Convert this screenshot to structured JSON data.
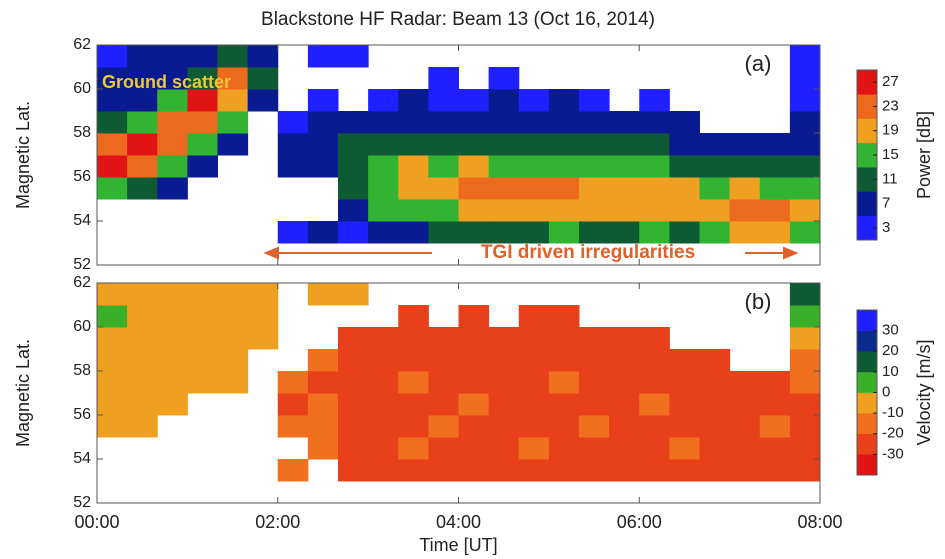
{
  "chart_data": [
    {
      "type": "heatmap",
      "title": "Blackstone HF Radar: Beam 13 (Oct 16, 2014)",
      "panel_label": "(a)",
      "ylabel": "Magnetic Lat.",
      "colorbar_label": "Power [dB]",
      "annotations": [
        "Ground scatter",
        "TGI driven irregularities"
      ],
      "xlim": [
        0,
        8
      ],
      "xticks": [
        {
          "value": 0,
          "label": "00:00"
        },
        {
          "value": 2,
          "label": "02:00"
        },
        {
          "value": 4,
          "label": "04:00"
        },
        {
          "value": 6,
          "label": "06:00"
        },
        {
          "value": 8,
          "label": "08:00"
        }
      ],
      "ylim": [
        52,
        62
      ],
      "yticks": [
        52,
        54,
        56,
        58,
        60,
        62
      ],
      "zlim": [
        1,
        29
      ],
      "zticks": [
        3,
        7,
        11,
        15,
        19,
        23,
        27
      ],
      "colors": [
        "#1f1fff",
        "#0a1a90",
        "#0d5a35",
        "#32b432",
        "#f0a020",
        "#ec6a1e",
        "#e01414"
      ],
      "x_bins": [
        0,
        0.3333,
        0.6667,
        1,
        1.3333,
        1.6667,
        2,
        2.3333,
        2.6667,
        3,
        3.3333,
        3.6667,
        4,
        4.3333,
        4.6667,
        5,
        5.3333,
        5.6667,
        6,
        6.3333,
        6.6667,
        7,
        7.3333,
        7.6667,
        8
      ],
      "y_bins": [
        52,
        53,
        54,
        55,
        56,
        57,
        58,
        59,
        60,
        61,
        62
      ],
      "z": [
        [
          null,
          null,
          null,
          null,
          null,
          null,
          null,
          null,
          null,
          null,
          null,
          null,
          null,
          null,
          null,
          null,
          null,
          null,
          null,
          null,
          null,
          null,
          null,
          null
        ],
        [
          null,
          null,
          null,
          null,
          null,
          null,
          3,
          5,
          3,
          7,
          7,
          11,
          11,
          11,
          11,
          15,
          11,
          11,
          15,
          11,
          15,
          19,
          19,
          15
        ],
        [
          null,
          null,
          null,
          null,
          null,
          null,
          null,
          null,
          7,
          15,
          15,
          15,
          19,
          19,
          19,
          19,
          19,
          19,
          19,
          19,
          19,
          23,
          23,
          19
        ],
        [
          15,
          11,
          7,
          null,
          null,
          null,
          null,
          null,
          11,
          15,
          19,
          19,
          23,
          23,
          23,
          23,
          19,
          19,
          19,
          19,
          15,
          19,
          15,
          15
        ],
        [
          25,
          23,
          15,
          7,
          null,
          null,
          5,
          5,
          11,
          15,
          19,
          15,
          19,
          15,
          15,
          15,
          15,
          15,
          15,
          11,
          11,
          11,
          11,
          11
        ],
        [
          23,
          25,
          23,
          15,
          7,
          null,
          5,
          5,
          11,
          11,
          11,
          11,
          11,
          11,
          11,
          11,
          11,
          11,
          11,
          7,
          7,
          7,
          7,
          7
        ],
        [
          11,
          15,
          23,
          23,
          15,
          null,
          3,
          5,
          7,
          7,
          7,
          7,
          7,
          7,
          7,
          7,
          7,
          5,
          7,
          5,
          null,
          null,
          null,
          5
        ],
        [
          7,
          7,
          15,
          25,
          19,
          7,
          null,
          3,
          null,
          3,
          5,
          3,
          3,
          5,
          3,
          5,
          3,
          null,
          3,
          null,
          null,
          null,
          null,
          3
        ],
        [
          5,
          5,
          7,
          11,
          23,
          11,
          null,
          null,
          null,
          null,
          null,
          3,
          null,
          3,
          null,
          null,
          null,
          null,
          null,
          null,
          null,
          null,
          null,
          3
        ],
        [
          3,
          5,
          5,
          5,
          11,
          7,
          null,
          3,
          3,
          null,
          null,
          null,
          null,
          null,
          null,
          null,
          null,
          null,
          null,
          null,
          null,
          null,
          null,
          3
        ]
      ]
    },
    {
      "type": "heatmap",
      "panel_label": "(b)",
      "ylabel": "Magnetic Lat.",
      "xlabel": "Time [UT]",
      "colorbar_label": "Velocity [m/s]",
      "xlim": [
        0,
        8
      ],
      "xticks": [
        {
          "value": 0,
          "label": "00:00"
        },
        {
          "value": 2,
          "label": "02:00"
        },
        {
          "value": 4,
          "label": "04:00"
        },
        {
          "value": 6,
          "label": "06:00"
        },
        {
          "value": 8,
          "label": "08:00"
        }
      ],
      "ylim": [
        52,
        62
      ],
      "yticks": [
        52,
        54,
        56,
        58,
        60,
        62
      ],
      "zlim": [
        -40,
        40
      ],
      "zticks": [
        -30,
        -20,
        -10,
        0,
        10,
        20,
        30
      ],
      "colors": [
        "#e01414",
        "#e8401a",
        "#f07020",
        "#f0a020",
        "#3ab02a",
        "#0d5a35",
        "#0a2a8c",
        "#1f1fff"
      ],
      "x_bins": [
        0,
        0.3333,
        0.6667,
        1,
        1.3333,
        1.6667,
        2,
        2.3333,
        2.6667,
        3,
        3.3333,
        3.6667,
        4,
        4.3333,
        4.6667,
        5,
        5.3333,
        5.6667,
        6,
        6.3333,
        6.6667,
        7,
        7.3333,
        7.6667,
        8
      ],
      "y_bins": [
        52,
        53,
        54,
        55,
        56,
        57,
        58,
        59,
        60,
        61,
        62
      ],
      "z": [
        [
          null,
          null,
          null,
          null,
          null,
          null,
          null,
          null,
          null,
          null,
          null,
          null,
          null,
          null,
          null,
          null,
          null,
          null,
          null,
          null,
          null,
          null,
          null,
          null
        ],
        [
          null,
          null,
          null,
          null,
          null,
          null,
          -15,
          null,
          -25,
          -25,
          -25,
          -25,
          -25,
          -25,
          -25,
          -25,
          -25,
          -25,
          -25,
          -25,
          -25,
          -25,
          -25,
          -25
        ],
        [
          null,
          null,
          null,
          null,
          null,
          null,
          null,
          -15,
          -25,
          -25,
          -15,
          -25,
          -25,
          -25,
          -15,
          -25,
          -25,
          -25,
          -25,
          -15,
          -25,
          -25,
          -25,
          -25
        ],
        [
          -5,
          -5,
          null,
          null,
          null,
          null,
          -15,
          -15,
          -25,
          -25,
          -25,
          -15,
          -25,
          -25,
          -25,
          -25,
          -15,
          -25,
          -25,
          -25,
          -25,
          -25,
          -15,
          -25
        ],
        [
          -5,
          -5,
          -5,
          null,
          null,
          null,
          -25,
          -15,
          -25,
          -25,
          -25,
          -25,
          -15,
          -25,
          -25,
          -25,
          -25,
          -25,
          -15,
          -25,
          -25,
          -25,
          -25,
          -25
        ],
        [
          -5,
          -5,
          -5,
          -5,
          -5,
          null,
          -15,
          -25,
          -25,
          -25,
          -15,
          -25,
          -25,
          -25,
          -25,
          -15,
          -25,
          -25,
          -25,
          -25,
          -25,
          -25,
          -25,
          -15
        ],
        [
          -5,
          -5,
          -5,
          -5,
          -5,
          null,
          null,
          -15,
          -25,
          -25,
          -25,
          -25,
          -25,
          -25,
          -25,
          -25,
          -25,
          -25,
          -25,
          -25,
          -25,
          null,
          null,
          -15
        ],
        [
          -5,
          -5,
          -5,
          -5,
          -5,
          -5,
          null,
          null,
          -25,
          -25,
          -25,
          -25,
          -25,
          -25,
          -25,
          -25,
          -25,
          -25,
          -25,
          null,
          null,
          null,
          null,
          -5
        ],
        [
          5,
          -5,
          -5,
          -5,
          -5,
          -5,
          null,
          null,
          null,
          null,
          -25,
          null,
          -25,
          null,
          -25,
          -25,
          null,
          null,
          null,
          null,
          null,
          null,
          null,
          5
        ],
        [
          -5,
          -5,
          -5,
          -5,
          -5,
          -5,
          null,
          -5,
          -5,
          null,
          null,
          null,
          null,
          null,
          null,
          null,
          null,
          null,
          null,
          null,
          null,
          null,
          null,
          15
        ]
      ]
    }
  ]
}
